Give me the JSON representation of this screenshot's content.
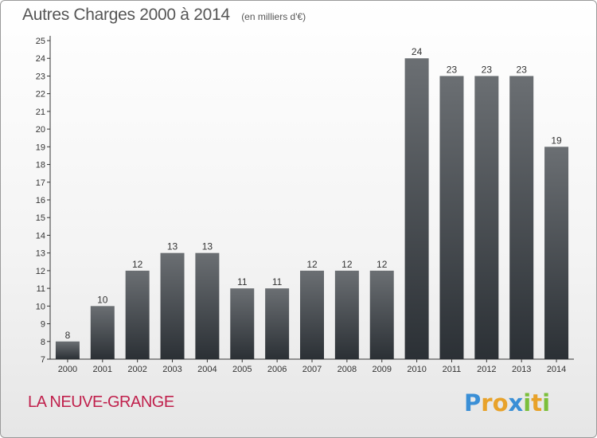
{
  "title": "Autres Charges 2000 à 2014",
  "subtitle": "(en milliers d'€)",
  "place": "LA NEUVE-GRANGE",
  "brand": {
    "letters": [
      "P",
      "r",
      "o",
      "x",
      "i",
      "t",
      "i"
    ],
    "colors": [
      "#3a8fd6",
      "#e8a22a",
      "#e8a22a",
      "#3a8fd6",
      "#7bbf3a",
      "#e8a22a",
      "#7bbf3a"
    ]
  },
  "colors": {
    "bar_top": "#6b6f73",
    "bar_bottom": "#2b3035",
    "axis": "#333333",
    "text": "#333333"
  },
  "chart_data": {
    "type": "bar",
    "categories": [
      "2000",
      "2001",
      "2002",
      "2003",
      "2004",
      "2005",
      "2006",
      "2007",
      "2008",
      "2009",
      "2010",
      "2011",
      "2012",
      "2013",
      "2014"
    ],
    "values": [
      8,
      10,
      12,
      13,
      13,
      11,
      11,
      12,
      12,
      12,
      24,
      23,
      23,
      23,
      19
    ],
    "ylim": [
      7,
      25
    ],
    "yticks": [
      7,
      8,
      9,
      10,
      11,
      12,
      13,
      14,
      15,
      16,
      17,
      18,
      19,
      20,
      21,
      22,
      23,
      24,
      25
    ],
    "grid": false,
    "data_labels": true
  }
}
